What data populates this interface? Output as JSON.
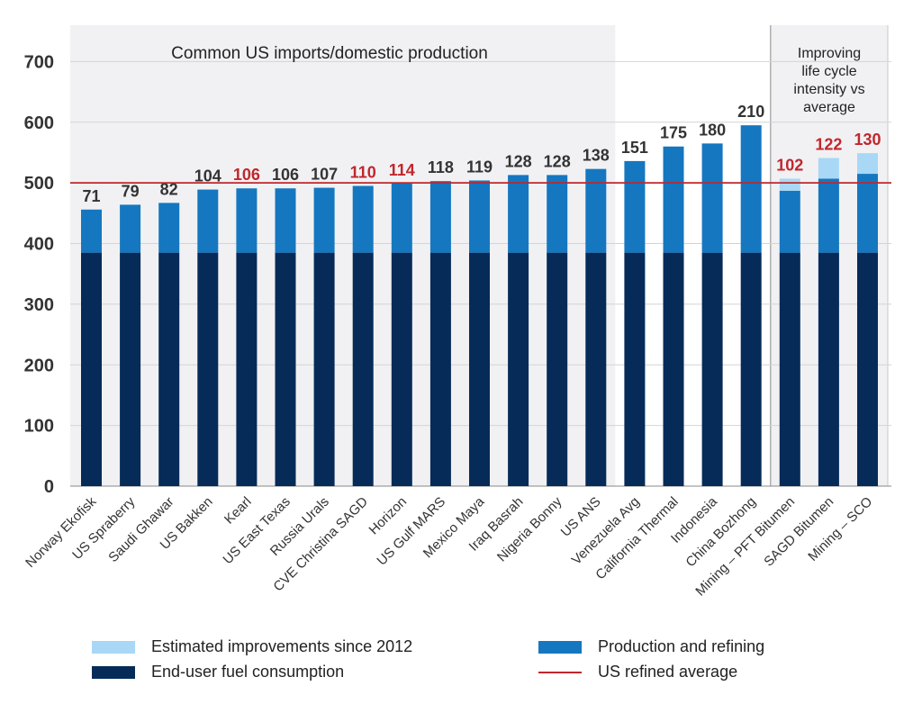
{
  "colors": {
    "improvements": "#a8d8f5",
    "production": "#1577c0",
    "end_use": "#062b58",
    "average_line": "#c0272d",
    "highlight_label": "#c0272d",
    "normal_label": "#333333",
    "panel_bg": "#f1f1f3"
  },
  "chart_data": {
    "type": "bar",
    "stacked": true,
    "categories": [
      "Norway Ekofisk",
      "US Spraberry",
      "Saudi Ghawar",
      "US Bakken",
      "Kearl",
      "US East Texas",
      "Russia Urals",
      "CVE Christina SAGD",
      "Horizon",
      "US Gulf MARS",
      "Mexico Maya",
      "Iraq Basrah",
      "Nigeria Bonny",
      "US ANS",
      "Venezuela Avg",
      "California Thermal",
      "Indonesia",
      "China Bozhong",
      "Mining – PFT Bitumen",
      "SAGD Bitumen",
      "Mining – SCO"
    ],
    "series": [
      {
        "name": "End-user fuel consumption",
        "values": [
          385,
          385,
          385,
          385,
          385,
          385,
          385,
          385,
          385,
          385,
          385,
          385,
          385,
          385,
          385,
          385,
          385,
          385,
          385,
          385,
          385
        ]
      },
      {
        "name": "Production and refining",
        "values": [
          71,
          79,
          82,
          104,
          106,
          106,
          107,
          110,
          114,
          118,
          119,
          128,
          128,
          138,
          151,
          175,
          180,
          210,
          102,
          122,
          130
        ]
      },
      {
        "name": "Estimated improvements since 2012",
        "values": [
          0,
          0,
          0,
          0,
          0,
          0,
          0,
          0,
          0,
          0,
          0,
          0,
          0,
          0,
          0,
          0,
          0,
          0,
          20,
          34,
          34
        ]
      }
    ],
    "data_labels": [
      "71",
      "79",
      "82",
      "104",
      "106",
      "106",
      "107",
      "110",
      "114",
      "118",
      "119",
      "128",
      "128",
      "138",
      "151",
      "175",
      "180",
      "210",
      "102",
      "122",
      "130"
    ],
    "highlighted": [
      false,
      false,
      false,
      false,
      true,
      false,
      false,
      true,
      true,
      false,
      false,
      false,
      false,
      false,
      false,
      false,
      false,
      false,
      true,
      true,
      true
    ],
    "reference_line": {
      "name": "US refined average",
      "value": 500
    },
    "ylim": [
      0,
      760
    ],
    "yticks": [
      0,
      100,
      200,
      300,
      400,
      500,
      600,
      700
    ],
    "annotations": {
      "left_panel": "Common US imports/domestic production",
      "right_panel": [
        "Improving",
        "life cycle",
        "intensity vs",
        "average"
      ]
    },
    "grid": true,
    "legend_position": "bottom"
  },
  "legend": {
    "improvements": "Estimated improvements since 2012",
    "production": "Production and refining",
    "end_use": "End-user fuel consumption",
    "average": "US refined average"
  }
}
